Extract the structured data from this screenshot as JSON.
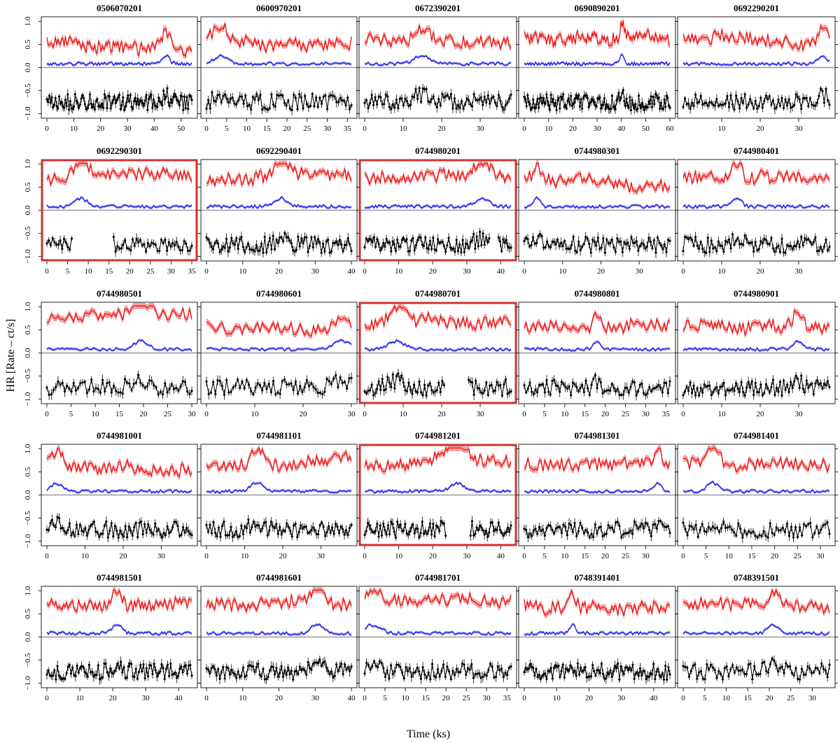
{
  "figure": {
    "ylabel": "HR [Rate – ct/s]",
    "xlabel": "Time (ks)",
    "colors": {
      "red": "#ee1111",
      "red_band": "#f4a0a0",
      "blue": "#1a1aee",
      "blue_band": "#a8a8f4",
      "black": "#000000",
      "zero_line": "#999999",
      "highlight": "#cc3333"
    }
  },
  "chart_data": {
    "type": "line",
    "ylim": [
      -1.1,
      1.1
    ],
    "yticks": [
      -1.0,
      -0.5,
      0.0,
      0.5,
      1.0
    ],
    "ytick_labels": [
      "−1.0",
      "−0.5",
      "0.0",
      "0.5",
      "1.0"
    ],
    "panels": [
      {
        "title": "0506070201",
        "duration": 54,
        "xticks": [
          0,
          10,
          20,
          30,
          40,
          50
        ],
        "highlighted": false
      },
      {
        "title": "0600970201",
        "duration": 36,
        "xticks": [
          0,
          5,
          10,
          15,
          20,
          25,
          30,
          35
        ],
        "highlighted": false
      },
      {
        "title": "0672390201",
        "duration": 38,
        "xticks": [
          0,
          10,
          20,
          30
        ],
        "highlighted": false
      },
      {
        "title": "0690890201",
        "duration": 60,
        "xticks": [
          0,
          10,
          20,
          30,
          40,
          50,
          60
        ],
        "highlighted": false
      },
      {
        "title": "0692290201",
        "duration": 38,
        "xticks": [
          10,
          20,
          30
        ],
        "highlighted": false
      },
      {
        "title": "0692290301",
        "duration": 35,
        "xticks": [
          0,
          5,
          10,
          15,
          20,
          25,
          30,
          35
        ],
        "highlighted": true,
        "gap": [
          6,
          16
        ]
      },
      {
        "title": "0692290401",
        "duration": 40,
        "xticks": [
          0,
          10,
          20,
          30,
          40
        ],
        "highlighted": false
      },
      {
        "title": "0744980201",
        "duration": 43,
        "xticks": [
          0,
          10,
          20,
          30,
          40
        ],
        "highlighted": true,
        "gap": [
          37,
          39
        ]
      },
      {
        "title": "0744980301",
        "duration": 38,
        "xticks": [
          0,
          10,
          20,
          30
        ],
        "highlighted": false
      },
      {
        "title": "0744980401",
        "duration": 38,
        "xticks": [
          0,
          10,
          20,
          30
        ],
        "highlighted": false
      },
      {
        "title": "0744980501",
        "duration": 30,
        "xticks": [
          0,
          5,
          10,
          15,
          20,
          25,
          30
        ],
        "highlighted": false
      },
      {
        "title": "0744980601",
        "duration": 30,
        "xticks": [
          0,
          10,
          20,
          30
        ],
        "highlighted": false
      },
      {
        "title": "0744980701",
        "duration": 38,
        "xticks": [
          0,
          10,
          20,
          30
        ],
        "highlighted": true,
        "gap": [
          21,
          27
        ]
      },
      {
        "title": "0744980801",
        "duration": 36,
        "xticks": [
          0,
          5,
          10,
          15,
          20,
          25,
          30,
          35
        ],
        "highlighted": false
      },
      {
        "title": "0744980901",
        "duration": 38,
        "xticks": [
          0,
          10,
          20,
          30
        ],
        "highlighted": false
      },
      {
        "title": "0744981001",
        "duration": 38,
        "xticks": [
          0,
          10,
          20,
          30
        ],
        "highlighted": false
      },
      {
        "title": "0744981101",
        "duration": 38,
        "xticks": [
          0,
          10,
          20,
          30
        ],
        "highlighted": false
      },
      {
        "title": "0744981201",
        "duration": 43,
        "xticks": [
          0,
          10,
          20,
          30,
          40
        ],
        "highlighted": true,
        "gap": [
          24,
          31
        ]
      },
      {
        "title": "0744981301",
        "duration": 36,
        "xticks": [
          0,
          5,
          10,
          15,
          20,
          25,
          30
        ],
        "highlighted": false
      },
      {
        "title": "0744981401",
        "duration": 32,
        "xticks": [
          0,
          5,
          10,
          15,
          20,
          25,
          30
        ],
        "highlighted": false
      },
      {
        "title": "0744981501",
        "duration": 44,
        "xticks": [
          0,
          10,
          20,
          30,
          40
        ],
        "highlighted": false
      },
      {
        "title": "0744981601",
        "duration": 40,
        "xticks": [
          0,
          10,
          20,
          30,
          40
        ],
        "highlighted": false
      },
      {
        "title": "0744981701",
        "duration": 36,
        "xticks": [
          0,
          5,
          10,
          15,
          20,
          25,
          30,
          35
        ],
        "highlighted": false
      },
      {
        "title": "0748391401",
        "duration": 45,
        "xticks": [
          0,
          10,
          20,
          30,
          40
        ],
        "highlighted": false
      },
      {
        "title": "0748391501",
        "duration": 34,
        "xticks": [
          0,
          5,
          10,
          15,
          20,
          25,
          30
        ],
        "highlighted": false
      }
    ]
  }
}
